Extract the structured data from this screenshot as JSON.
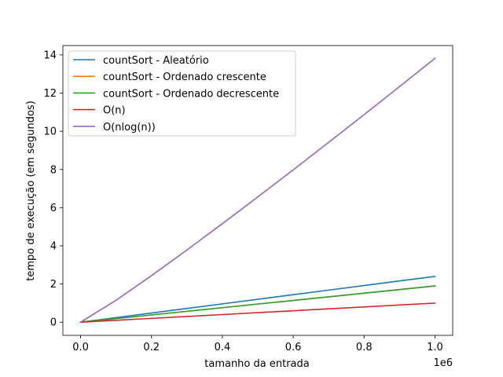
{
  "chart_data": {
    "type": "line",
    "title": "",
    "xlabel": "tamanho da entrada",
    "ylabel": "tempo de execução (em segundos)",
    "x_offset_label": "1e6",
    "xlim": [
      -50000,
      1050000
    ],
    "ylim": [
      -0.69,
      14.49
    ],
    "x_ticks": [
      0,
      200000,
      400000,
      600000,
      800000,
      1000000
    ],
    "x_tick_labels": [
      "0.0",
      "0.2",
      "0.4",
      "0.6",
      "0.8",
      "1.0"
    ],
    "y_ticks": [
      0,
      2,
      4,
      6,
      8,
      10,
      12,
      14
    ],
    "y_tick_labels": [
      "0",
      "2",
      "4",
      "6",
      "8",
      "10",
      "12",
      "14"
    ],
    "x": [
      0,
      100000,
      200000,
      300000,
      400000,
      500000,
      600000,
      700000,
      800000,
      900000,
      1000000
    ],
    "series": [
      {
        "name": "countSort - Aleatório",
        "color": "#1f77b4",
        "values": [
          0,
          0.24,
          0.48,
          0.72,
          0.96,
          1.2,
          1.44,
          1.68,
          1.92,
          2.16,
          2.4
        ]
      },
      {
        "name": "countSort - Ordenado crescente",
        "color": "#ff7f0e",
        "values": [
          0,
          0.19,
          0.38,
          0.57,
          0.76,
          0.95,
          1.14,
          1.33,
          1.52,
          1.71,
          1.9
        ]
      },
      {
        "name": "countSort - Ordenado decrescente",
        "color": "#2ca02c",
        "values": [
          0,
          0.19,
          0.38,
          0.57,
          0.76,
          0.95,
          1.14,
          1.33,
          1.52,
          1.71,
          1.9
        ]
      },
      {
        "name": "O(n)",
        "color": "#d62728",
        "values": [
          0,
          0.1,
          0.2,
          0.3,
          0.4,
          0.5,
          0.6,
          0.7,
          0.8,
          0.9,
          1.0
        ]
      },
      {
        "name": "O(nlog(n))",
        "color": "#9467bd",
        "values": [
          0,
          1.15,
          2.44,
          3.78,
          5.16,
          6.56,
          7.98,
          9.42,
          10.87,
          12.34,
          13.82
        ]
      }
    ],
    "grid": false,
    "legend_position": "top-left"
  }
}
